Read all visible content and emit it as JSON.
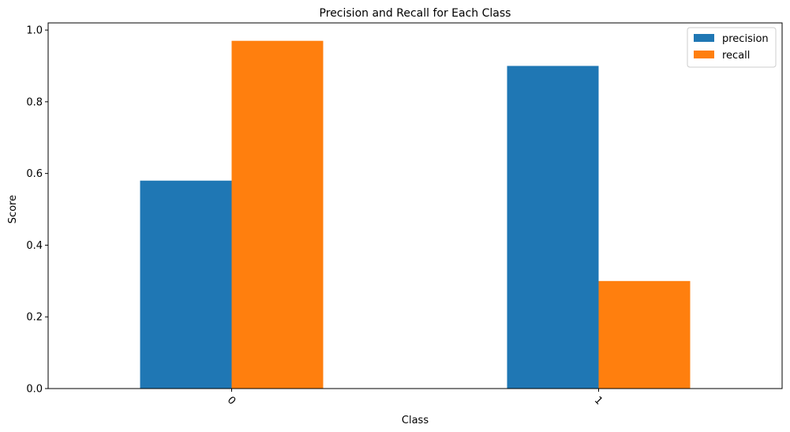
{
  "chart_data": {
    "type": "bar",
    "title": "Precision and Recall for Each Class",
    "xlabel": "Class",
    "ylabel": "Score",
    "categories": [
      "0",
      "1"
    ],
    "series": [
      {
        "name": "precision",
        "color": "#1f77b4",
        "values": [
          0.58,
          0.9
        ]
      },
      {
        "name": "recall",
        "color": "#ff7f0e",
        "values": [
          0.97,
          0.3
        ]
      }
    ],
    "ylim": [
      0,
      1.02
    ],
    "yticks": [
      0.0,
      0.2,
      0.4,
      0.6,
      0.8,
      1.0
    ],
    "ytick_labels": [
      "0.0",
      "0.2",
      "0.4",
      "0.6",
      "0.8",
      "1.0"
    ],
    "xtick_rotation_deg": 45,
    "grid": false,
    "legend_position": "top-right"
  }
}
